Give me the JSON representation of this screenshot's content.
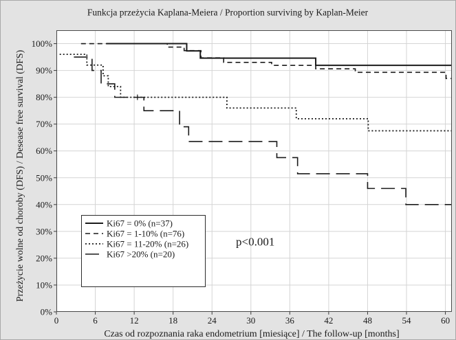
{
  "chart_data": {
    "type": "line",
    "title": "Funkcja przeżycia Kaplana-Meiera / Proportion surviving by Kaplan-Meier",
    "xlabel": "Czas od rozpoznania raka endometrium [miesiące] / The follow-up [months]",
    "ylabel": "Przeżycie wolne od choroby (DFS) / Desease free survival (DFS)",
    "xlim": [
      0,
      61
    ],
    "ylim": [
      0,
      1.05
    ],
    "xticks": [
      0,
      6,
      12,
      18,
      24,
      30,
      36,
      42,
      48,
      54,
      60
    ],
    "yticks": [
      0,
      0.1,
      0.2,
      0.3,
      0.4,
      0.5,
      0.6,
      0.7,
      0.8,
      0.9,
      1.0
    ],
    "ytick_labels": [
      "0%",
      "10%",
      "20%",
      "30%",
      "40%",
      "50%",
      "60%",
      "70%",
      "80%",
      "90%",
      "100%"
    ],
    "grid": true,
    "legend_position": "bottom-left",
    "line_color": "#1a1a1a",
    "series": [
      {
        "name": "Ki67 = 0% (n=37)",
        "style": "solid",
        "steps": [
          [
            7.7,
            1.0
          ],
          [
            20.1,
            0.973
          ],
          [
            22.2,
            0.946
          ],
          [
            40.0,
            0.919
          ]
        ]
      },
      {
        "name": "Ki67 = 1-10% (n=76)",
        "style": "dashed",
        "steps": [
          [
            3.8,
            1.0
          ],
          [
            17.1,
            0.987
          ],
          [
            19.7,
            0.974
          ],
          [
            22.3,
            0.947
          ],
          [
            25.8,
            0.93
          ],
          [
            33.2,
            0.919
          ],
          [
            40.0,
            0.906
          ],
          [
            46.1,
            0.893
          ],
          [
            60.1,
            0.87
          ]
        ]
      },
      {
        "name": "Ki67 = 11-20% (n=26)",
        "style": "dotted",
        "steps": [
          [
            0.5,
            0.96
          ],
          [
            4.7,
            0.92
          ],
          [
            7.2,
            0.88
          ],
          [
            8.0,
            0.84
          ],
          [
            9.9,
            0.8
          ],
          [
            26.3,
            0.76
          ],
          [
            37.0,
            0.72
          ],
          [
            48.1,
            0.675
          ]
        ]
      },
      {
        "name": "Ki67 >20% (n=20)",
        "style": "long-dash",
        "steps": [
          [
            2.7,
            0.95
          ],
          [
            5.5,
            0.9
          ],
          [
            6.9,
            0.85
          ],
          [
            9.0,
            0.8
          ],
          [
            13.5,
            0.75
          ],
          [
            19.0,
            0.69
          ],
          [
            20.4,
            0.635
          ],
          [
            34.0,
            0.575
          ],
          [
            37.2,
            0.515
          ],
          [
            48.0,
            0.46
          ],
          [
            53.9,
            0.4
          ]
        ],
        "censored": [
          [
            12.5,
            0.8
          ]
        ]
      }
    ],
    "annotations": [
      "p<0.001"
    ]
  }
}
